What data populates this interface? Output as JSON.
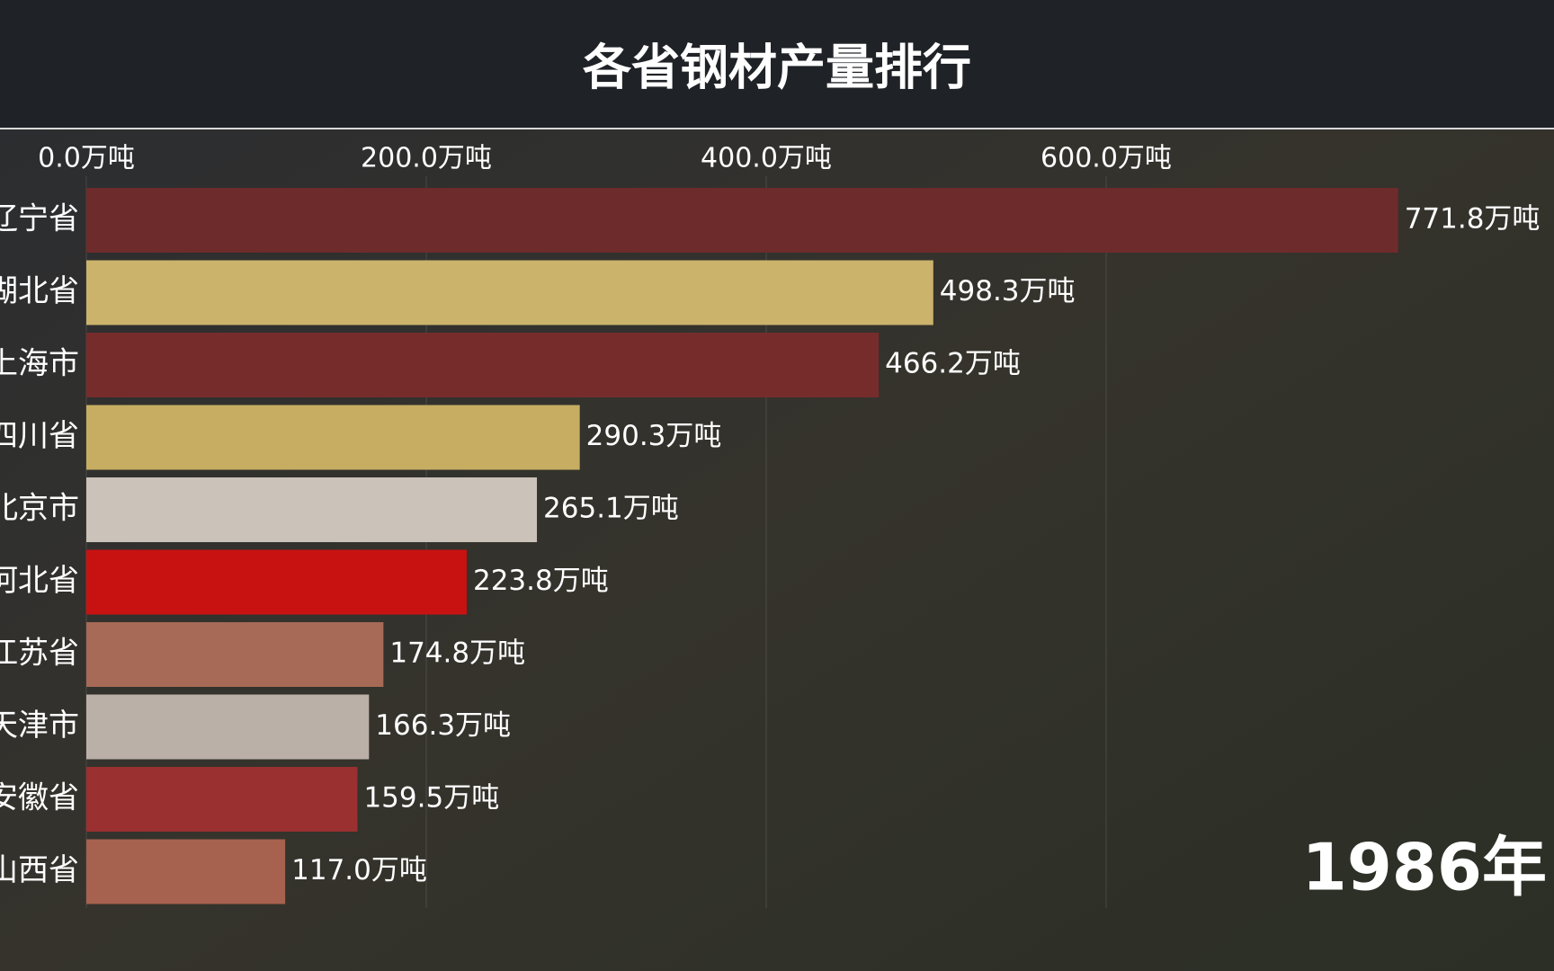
{
  "chart_data": {
    "type": "bar",
    "orientation": "horizontal",
    "title": "各省钢材产量排行",
    "categories": [
      "辽宁省",
      "湖北省",
      "上海市",
      "四川省",
      "北京市",
      "河北省",
      "江苏省",
      "天津市",
      "安徽省",
      "山西省"
    ],
    "values": [
      771.8,
      498.3,
      466.2,
      290.3,
      265.1,
      223.8,
      174.8,
      166.3,
      159.5,
      117.0
    ],
    "value_labels": [
      "771.8万吨",
      "498.3万吨",
      "466.2万吨",
      "290.3万吨",
      "265.1万吨",
      "223.8万吨",
      "174.8万吨",
      "166.3万吨",
      "159.5万吨",
      "117.0万吨"
    ],
    "colors": [
      "#6e2b2b",
      "#cbb36c",
      "#772c2c",
      "#c6ad62",
      "#cbc2ba",
      "#c81212",
      "#a66a56",
      "#bbb0a8",
      "#9a3030",
      "#a6624e"
    ],
    "xlim": [
      0,
      800
    ],
    "xticks": [
      {
        "value": 0,
        "label": "0.0万吨"
      },
      {
        "value": 200,
        "label": "200.0万吨"
      },
      {
        "value": 400,
        "label": "400.0万吨"
      },
      {
        "value": 600,
        "label": "600.0万吨"
      }
    ],
    "grid": true,
    "annotation": "1986年"
  }
}
